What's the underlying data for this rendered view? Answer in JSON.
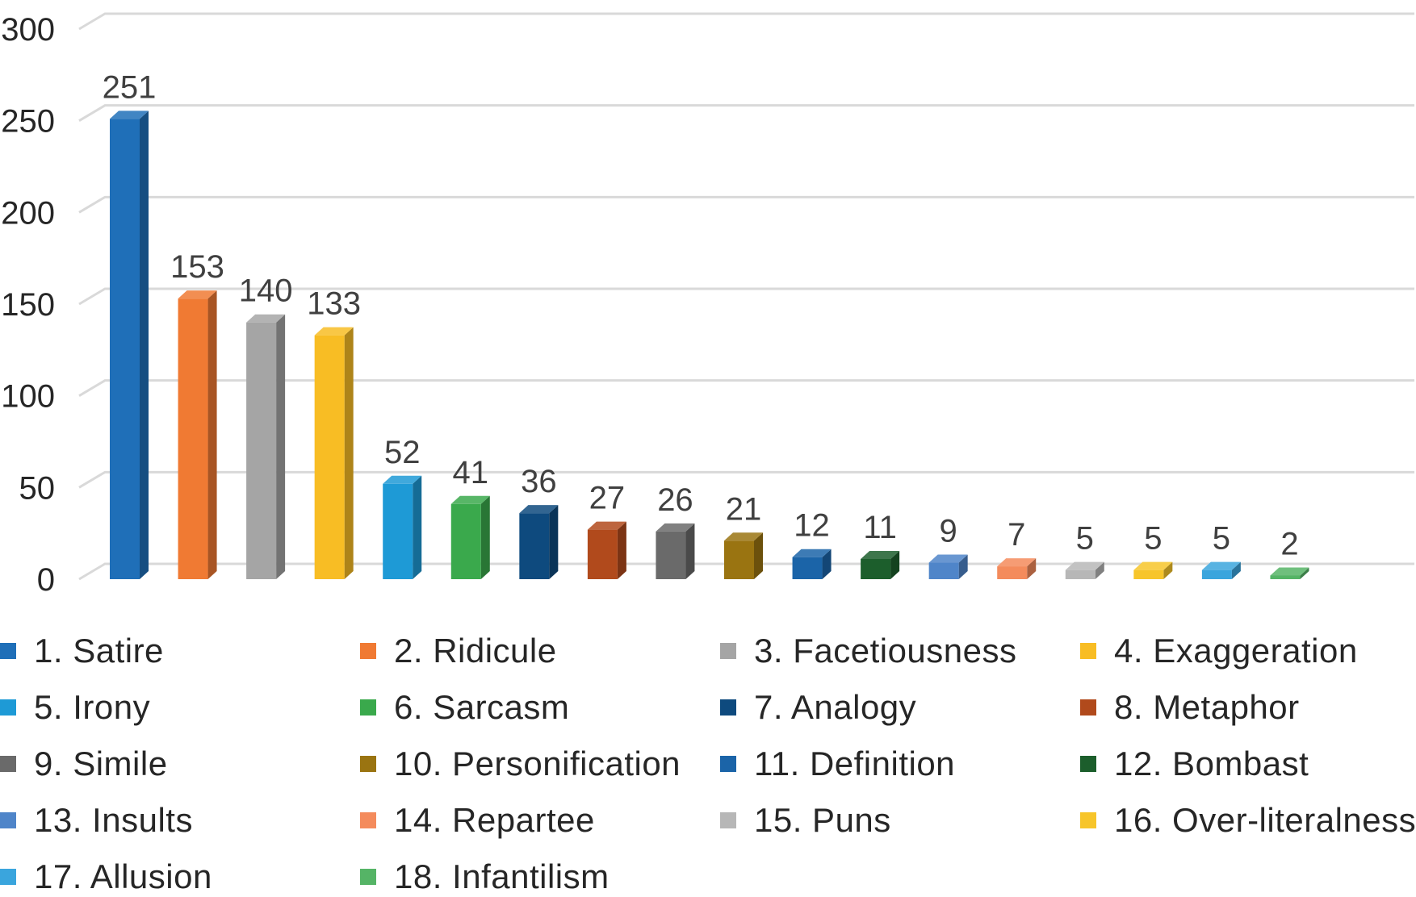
{
  "chart_data": {
    "type": "bar",
    "title": "",
    "xlabel": "",
    "ylabel": "",
    "ylim": [
      0,
      300
    ],
    "yticks": [
      0,
      50,
      100,
      150,
      200,
      250,
      300
    ],
    "grid": true,
    "legend_position": "bottom",
    "categories": [
      "1. Satire",
      "2. Ridicule",
      "3. Facetiousness",
      "4. Exaggeration",
      "5. Irony",
      "6. Sarcasm",
      "7. Analogy",
      "8. Metaphor",
      "9. Simile",
      "10. Personification",
      "11. Definition",
      "12. Bombast",
      "13. Insults",
      "14. Repartee",
      "15. Puns",
      "16. Over-literalness",
      "17. Allusion",
      "18. Infantilism"
    ],
    "values": [
      251,
      153,
      140,
      133,
      52,
      41,
      36,
      27,
      26,
      21,
      12,
      11,
      9,
      7,
      5,
      5,
      5,
      2
    ],
    "colors": [
      "#1f6fb8",
      "#f07a33",
      "#a5a5a5",
      "#f8bd24",
      "#1e9ad6",
      "#3aa94c",
      "#0e4a7e",
      "#b14a1c",
      "#6a6a6a",
      "#9a7411",
      "#1b64a8",
      "#1c5e2c",
      "#4f85c9",
      "#f48b5c",
      "#b7b7b7",
      "#f7c52a",
      "#3aa5dd",
      "#55b466"
    ]
  }
}
